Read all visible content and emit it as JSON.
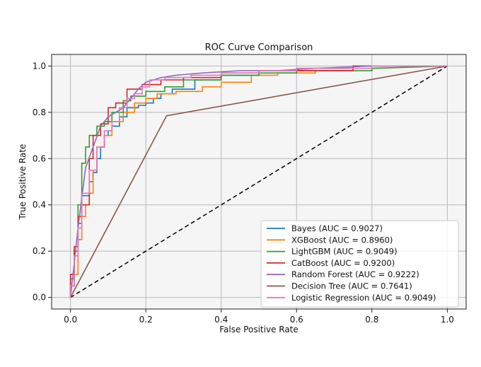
{
  "chart_data": {
    "type": "line",
    "title": "ROC Curve Comparison",
    "xlabel": "False Positive Rate",
    "ylabel": "True Positive Rate",
    "xlim": [
      -0.05,
      1.05
    ],
    "ylim": [
      -0.05,
      1.05
    ],
    "xticks": [
      "0.0",
      "0.2",
      "0.4",
      "0.6",
      "0.8",
      "1.0"
    ],
    "yticks": [
      "0.0",
      "0.2",
      "0.4",
      "0.6",
      "0.8",
      "1.0"
    ],
    "grid": true,
    "legend_position": "lower-right",
    "series": [
      {
        "name": "Bayes (AUC = 0.9027)",
        "color": "#1f77b4",
        "x": [
          0,
          0,
          0.01,
          0.01,
          0.02,
          0.02,
          0.03,
          0.03,
          0.05,
          0.05,
          0.06,
          0.06,
          0.07,
          0.07,
          0.08,
          0.08,
          0.09,
          0.09,
          0.1,
          0.1,
          0.11,
          0.11,
          0.13,
          0.13,
          0.15,
          0.15,
          0.18,
          0.18,
          0.2,
          0.2,
          0.22,
          0.22,
          0.24,
          0.24,
          0.27,
          0.27,
          0.33,
          0.33,
          0.4,
          0.4,
          0.5,
          0.5,
          0.6,
          0.6,
          0.75,
          0.75,
          1.0
        ],
        "y": [
          0,
          0.05,
          0.05,
          0.2,
          0.2,
          0.32,
          0.32,
          0.44,
          0.44,
          0.5,
          0.5,
          0.54,
          0.54,
          0.6,
          0.6,
          0.65,
          0.65,
          0.7,
          0.7,
          0.72,
          0.72,
          0.74,
          0.74,
          0.78,
          0.78,
          0.82,
          0.82,
          0.83,
          0.83,
          0.84,
          0.84,
          0.86,
          0.86,
          0.88,
          0.88,
          0.9,
          0.9,
          0.94,
          0.94,
          0.96,
          0.96,
          0.98,
          0.98,
          0.99,
          0.99,
          1.0,
          1.0
        ]
      },
      {
        "name": "XGBoost (AUC = 0.8960)",
        "color": "#ff7f0e",
        "x": [
          0,
          0,
          0.02,
          0.02,
          0.03,
          0.03,
          0.04,
          0.04,
          0.05,
          0.05,
          0.06,
          0.06,
          0.07,
          0.07,
          0.09,
          0.09,
          0.11,
          0.11,
          0.14,
          0.14,
          0.17,
          0.17,
          0.2,
          0.2,
          0.23,
          0.23,
          0.28,
          0.28,
          0.35,
          0.35,
          0.4,
          0.4,
          0.48,
          0.48,
          0.55,
          0.55,
          0.65,
          0.65,
          0.75,
          0.75,
          1.0
        ],
        "y": [
          0,
          0.1,
          0.1,
          0.25,
          0.25,
          0.35,
          0.35,
          0.4,
          0.4,
          0.45,
          0.45,
          0.55,
          0.55,
          0.65,
          0.65,
          0.7,
          0.7,
          0.76,
          0.76,
          0.8,
          0.8,
          0.84,
          0.84,
          0.86,
          0.86,
          0.88,
          0.88,
          0.89,
          0.89,
          0.91,
          0.91,
          0.93,
          0.93,
          0.96,
          0.96,
          0.97,
          0.97,
          0.98,
          0.98,
          1.0,
          1.0
        ]
      },
      {
        "name": "LightGBM (AUC = 0.9049)",
        "color": "#2ca02c",
        "x": [
          0,
          0,
          0.01,
          0.01,
          0.02,
          0.02,
          0.03,
          0.03,
          0.04,
          0.04,
          0.05,
          0.05,
          0.07,
          0.07,
          0.09,
          0.09,
          0.11,
          0.11,
          0.14,
          0.14,
          0.16,
          0.16,
          0.2,
          0.2,
          0.25,
          0.25,
          0.3,
          0.3,
          0.4,
          0.4,
          0.5,
          0.5,
          0.6,
          0.6,
          0.8,
          0.8,
          1.0
        ],
        "y": [
          0,
          0.08,
          0.08,
          0.2,
          0.2,
          0.4,
          0.4,
          0.58,
          0.58,
          0.65,
          0.65,
          0.7,
          0.7,
          0.74,
          0.74,
          0.76,
          0.76,
          0.8,
          0.8,
          0.85,
          0.85,
          0.87,
          0.87,
          0.89,
          0.89,
          0.91,
          0.91,
          0.94,
          0.94,
          0.96,
          0.96,
          0.97,
          0.97,
          0.98,
          0.98,
          0.99,
          1.0
        ]
      },
      {
        "name": "CatBoost (AUC = 0.9200)",
        "color": "#d62728",
        "x": [
          0,
          0,
          0.01,
          0.01,
          0.02,
          0.02,
          0.03,
          0.03,
          0.05,
          0.05,
          0.06,
          0.06,
          0.08,
          0.08,
          0.1,
          0.1,
          0.12,
          0.12,
          0.15,
          0.15,
          0.19,
          0.19,
          0.24,
          0.24,
          0.3,
          0.3,
          0.4,
          0.4,
          0.5,
          0.5,
          0.75,
          0.75,
          1.0
        ],
        "y": [
          0,
          0.1,
          0.1,
          0.22,
          0.22,
          0.35,
          0.35,
          0.4,
          0.4,
          0.6,
          0.6,
          0.7,
          0.7,
          0.75,
          0.75,
          0.82,
          0.82,
          0.84,
          0.84,
          0.9,
          0.9,
          0.92,
          0.92,
          0.94,
          0.94,
          0.95,
          0.95,
          0.97,
          0.97,
          0.98,
          0.98,
          1.0,
          1.0
        ]
      },
      {
        "name": "Random Forest (AUC = 0.9222)",
        "color": "#9467bd",
        "x": [
          0,
          0.02,
          0.04,
          0.06,
          0.08,
          0.1,
          0.12,
          0.14,
          0.16,
          0.18,
          0.2,
          0.24,
          0.28,
          0.35,
          0.45,
          0.55,
          0.65,
          0.8,
          1.0
        ],
        "y": [
          0,
          0.3,
          0.56,
          0.65,
          0.74,
          0.78,
          0.8,
          0.82,
          0.86,
          0.9,
          0.93,
          0.95,
          0.96,
          0.97,
          0.98,
          0.98,
          0.99,
          1.0,
          1.0
        ]
      },
      {
        "name": "Decision Tree (AUC = 0.7641)",
        "color": "#8c564b",
        "x": [
          0,
          0.255,
          1.0
        ],
        "y": [
          0,
          0.785,
          1.0
        ]
      },
      {
        "name": "Logistic Regression (AUC = 0.9049)",
        "color": "#e377c2",
        "x": [
          0,
          0,
          0.01,
          0.01,
          0.02,
          0.02,
          0.03,
          0.03,
          0.05,
          0.05,
          0.07,
          0.07,
          0.09,
          0.09,
          0.11,
          0.11,
          0.13,
          0.13,
          0.15,
          0.15,
          0.17,
          0.17,
          0.19,
          0.19,
          0.21,
          0.21,
          0.25,
          0.25,
          0.32,
          0.32,
          0.4,
          0.4,
          0.5,
          0.5,
          0.6,
          0.6,
          0.8,
          0.8,
          1.0
        ],
        "y": [
          0,
          0.05,
          0.05,
          0.18,
          0.18,
          0.3,
          0.3,
          0.45,
          0.45,
          0.55,
          0.55,
          0.65,
          0.65,
          0.72,
          0.72,
          0.76,
          0.76,
          0.82,
          0.82,
          0.86,
          0.86,
          0.88,
          0.88,
          0.91,
          0.91,
          0.94,
          0.94,
          0.95,
          0.95,
          0.96,
          0.96,
          0.97,
          0.97,
          0.98,
          0.98,
          0.99,
          0.99,
          1.0,
          1.0
        ]
      }
    ],
    "reference_line": {
      "x": [
        0,
        1
      ],
      "y": [
        0,
        1
      ],
      "color": "#000000",
      "style": "dashed"
    }
  }
}
